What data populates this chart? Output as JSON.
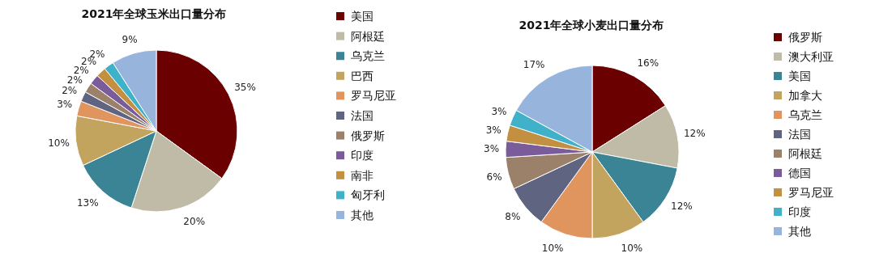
{
  "chart_data": [
    {
      "type": "pie",
      "title": "2021年全球玉米出口量分布",
      "legend": "right",
      "categories": [
        "美国",
        "阿根廷",
        "乌克兰",
        "巴西",
        "罗马尼亚",
        "法国",
        "俄罗斯",
        "印度",
        "南非",
        "匈牙利",
        "其他"
      ],
      "values": [
        35,
        20,
        13,
        10,
        3,
        2,
        2,
        2,
        2,
        2,
        9
      ],
      "value_labels": [
        "35%",
        "20%",
        "13%",
        "10%",
        "3%",
        "2%",
        "2%",
        "2%",
        "2%",
        "2%",
        "9%"
      ],
      "colors": [
        "#6b0000",
        "#bfbba7",
        "#3a8495",
        "#c3a45e",
        "#e0955f",
        "#5f6580",
        "#9b8169",
        "#7a5c9b",
        "#c39042",
        "#3fb1c9",
        "#97b4dc"
      ]
    },
    {
      "type": "pie",
      "title": "2021年全球小麦出口量分布",
      "legend": "right",
      "categories": [
        "俄罗斯",
        "澳大利亚",
        "美国",
        "加拿大",
        "乌克兰",
        "法国",
        "阿根廷",
        "德国",
        "罗马尼亚",
        "印度",
        "其他"
      ],
      "values": [
        16,
        12,
        12,
        10,
        10,
        8,
        6,
        3,
        3,
        3,
        17
      ],
      "value_labels": [
        "16%",
        "12%",
        "12%",
        "10%",
        "10%",
        "8%",
        "6%",
        "3%",
        "3%",
        "3%",
        "17%"
      ],
      "colors": [
        "#6b0000",
        "#bfbba7",
        "#3a8495",
        "#c3a45e",
        "#e0955f",
        "#5f6580",
        "#9b8169",
        "#7a5c9b",
        "#c39042",
        "#3fb1c9",
        "#97b4dc"
      ]
    }
  ]
}
